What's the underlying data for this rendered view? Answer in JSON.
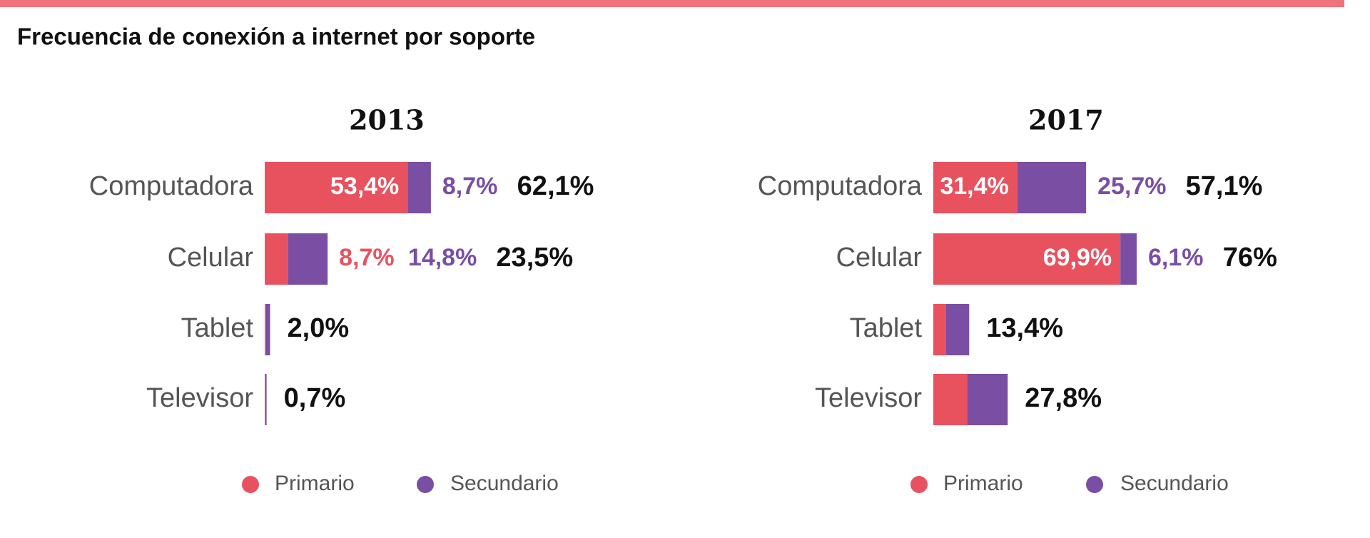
{
  "title": "Frecuencia de conexión a internet por soporte",
  "chart_data": [
    {
      "type": "bar",
      "orientation": "horizontal",
      "stacked": true,
      "title": "2013",
      "categories": [
        "Computadora",
        "Celular",
        "Tablet",
        "Televisor"
      ],
      "series": [
        {
          "name": "Primario",
          "color": "#e8525f",
          "values": [
            53.4,
            8.7,
            0.5,
            0.2
          ],
          "value_labels": [
            "53,4%",
            "8,7%",
            null,
            null
          ]
        },
        {
          "name": "Secundario",
          "color": "#7a4ea3",
          "values": [
            8.7,
            14.8,
            1.5,
            0.5
          ],
          "value_labels": [
            "8,7%",
            "14,8%",
            null,
            null
          ]
        }
      ],
      "totals": [
        62.1,
        23.5,
        2.0,
        0.7
      ],
      "total_labels": [
        "62,1%",
        "23,5%",
        "2,0%",
        "0,7%"
      ]
    },
    {
      "type": "bar",
      "orientation": "horizontal",
      "stacked": true,
      "title": "2017",
      "categories": [
        "Computadora",
        "Celular",
        "Tablet",
        "Televisor"
      ],
      "series": [
        {
          "name": "Primario",
          "color": "#e8525f",
          "values": [
            31.4,
            69.9,
            4.7,
            12.6
          ],
          "value_labels": [
            "31,4%",
            "69,9%",
            null,
            null
          ]
        },
        {
          "name": "Secundario",
          "color": "#7a4ea3",
          "values": [
            25.7,
            6.1,
            8.7,
            15.2
          ],
          "value_labels": [
            "25,7%",
            "6,1%",
            null,
            null
          ]
        }
      ],
      "totals": [
        57.1,
        76,
        13.4,
        27.8
      ],
      "total_labels": [
        "57,1%",
        "76%",
        "13,4%",
        "27,8%"
      ]
    }
  ]
}
